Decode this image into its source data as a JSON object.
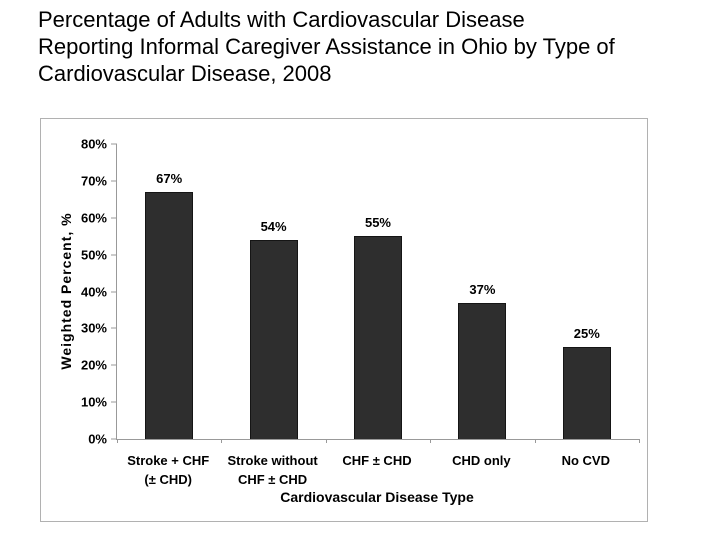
{
  "page": {
    "title_lines": [
      "Percentage of Adults with Cardiovascular Disease",
      "Reporting Informal Caregiver Assistance in Ohio by Type of",
      "Cardiovascular Disease, 2008"
    ]
  },
  "chart_data": {
    "type": "bar",
    "title": "Percentage of Adults with Cardiovascular Disease Reporting Informal Caregiver Assistance in Ohio by Type of Cardiovascular Disease, 2008",
    "categories": [
      "Stroke + CHF (± CHD)",
      "Stroke without CHF ± CHD",
      "CHF ± CHD",
      "CHD only",
      "No CVD"
    ],
    "category_lines": [
      [
        "Stroke + CHF",
        "(± CHD)"
      ],
      [
        "Stroke without",
        "CHF ± CHD"
      ],
      [
        "CHF ± CHD"
      ],
      [
        "CHD only"
      ],
      [
        "No CVD"
      ]
    ],
    "values": [
      67,
      54,
      55,
      37,
      25
    ],
    "bar_labels": [
      "67%",
      "54%",
      "55%",
      "37%",
      "25%"
    ],
    "xlabel": "Cardiovascular Disease Type",
    "ylabel": "Weighted Percent, %",
    "ylim": [
      0,
      80
    ],
    "ytick_values": [
      0,
      10,
      20,
      30,
      40,
      50,
      60,
      70,
      80
    ],
    "ytick_labels": [
      "0%",
      "10%",
      "20%",
      "30%",
      "40%",
      "50%",
      "60%",
      "70%",
      "80%"
    ],
    "grid": false,
    "legend_position": "none",
    "bar_color": "#2e2e2e",
    "bar_border_color": "#151515",
    "axis_color": "#999999",
    "frame_border_color": "#b1b1b1",
    "text_color": "#000000"
  }
}
